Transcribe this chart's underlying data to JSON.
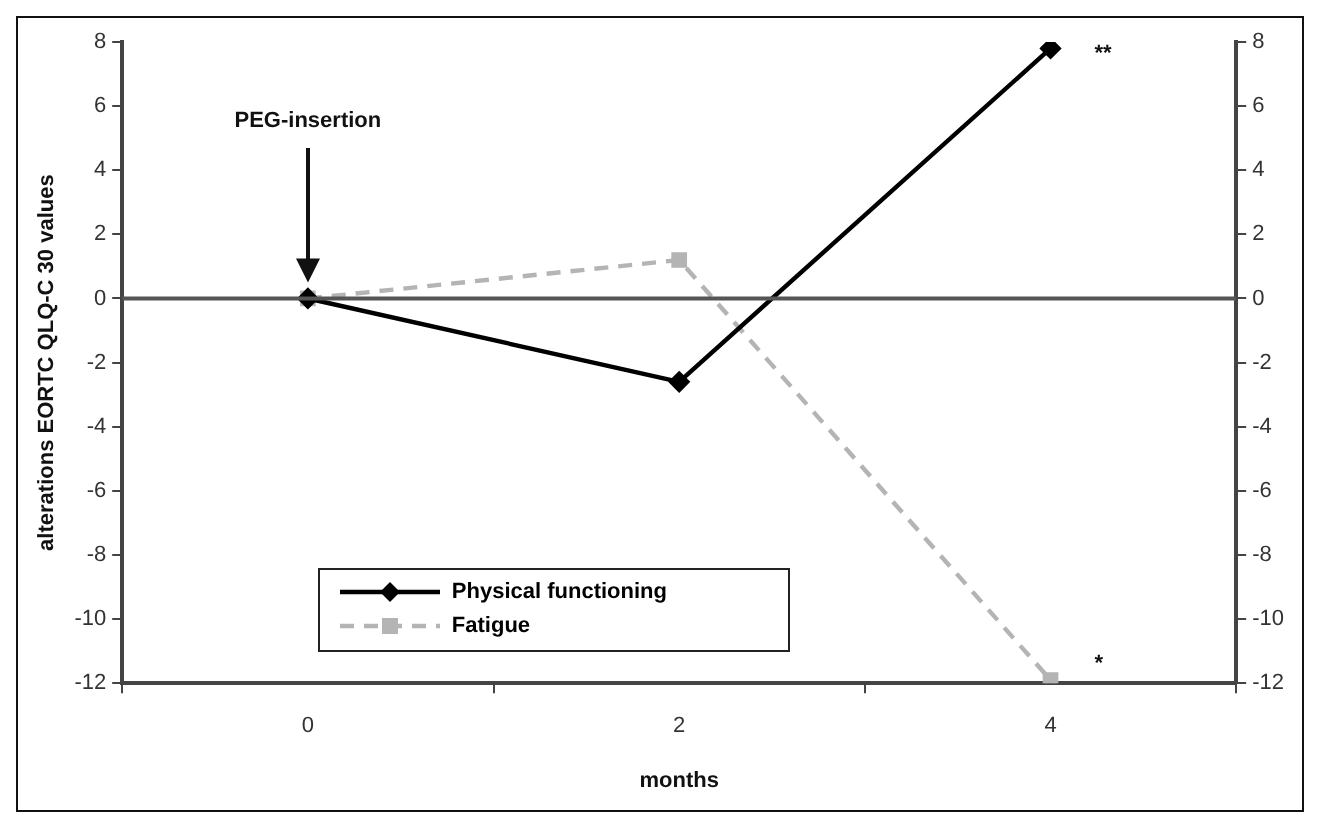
{
  "chart_data": {
    "type": "line",
    "xlabel": "months",
    "ylabel": "alterations EORTC QLQ-C 30 values",
    "categories": [
      "0",
      "2",
      "4"
    ],
    "series": [
      {
        "name": "Physical functioning",
        "color": "#000000",
        "values": [
          0,
          -2.6,
          7.8
        ],
        "marker": "diamond",
        "line_style": "solid"
      },
      {
        "name": "Fatigue",
        "color": "#b4b4b4",
        "values": [
          0,
          1.2,
          -11.9
        ],
        "marker": "square",
        "line_style": "dashed"
      }
    ],
    "ylim": [
      -12,
      8
    ],
    "yticks": [
      -12,
      -10,
      -8,
      -6,
      -4,
      -2,
      0,
      2,
      4,
      6,
      8
    ],
    "y2lim": [
      -12,
      8
    ],
    "y2ticks": [
      -12,
      -10,
      -8,
      -6,
      -4,
      -2,
      0,
      2,
      4,
      6,
      8
    ],
    "ref_lines": [
      {
        "axis": "y",
        "value": 0,
        "color": "#555555"
      }
    ],
    "annotations": [
      "PEG-insertion",
      {
        "text": "**",
        "x": "4",
        "y": 7.8
      },
      {
        "text": "*",
        "x": "4",
        "y": -11.9
      }
    ],
    "legend": "bottom",
    "grid": false
  }
}
